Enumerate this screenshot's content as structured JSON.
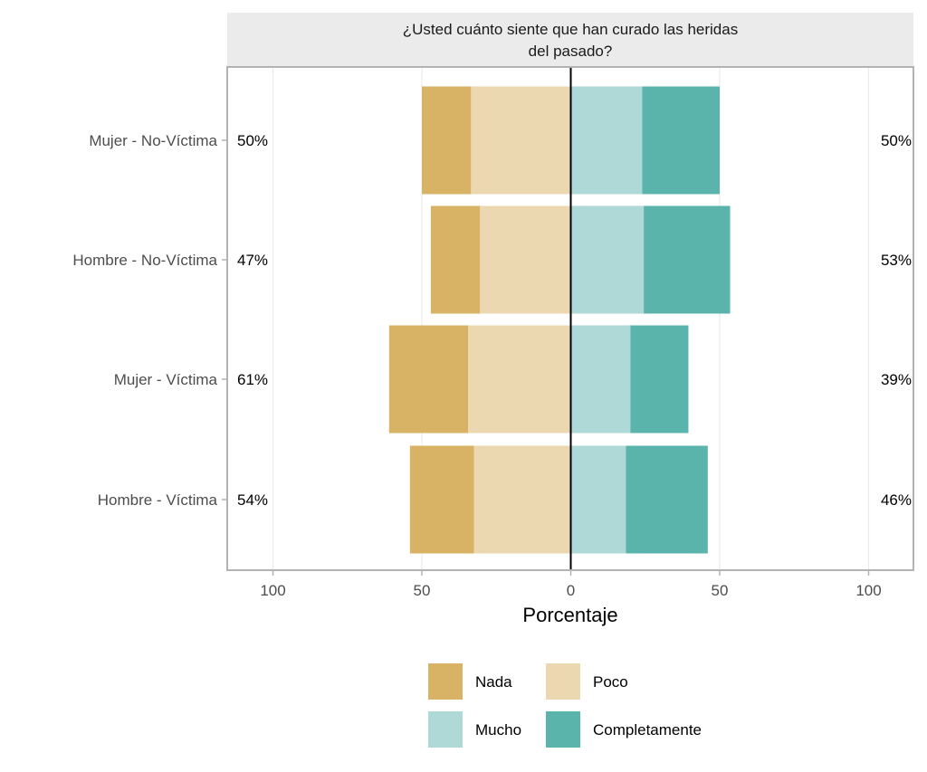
{
  "chart_data": {
    "type": "bar",
    "subtype": "diverging-stacked-likert",
    "facet_title": [
      "¿Usted cuánto siente que han curado las heridas",
      "del pasado?"
    ],
    "xlabel": "Porcentaje",
    "ylabel": "",
    "xlim": [
      -115,
      115
    ],
    "x_ticks": [
      {
        "value": -100,
        "label": "100"
      },
      {
        "value": -50,
        "label": "50"
      },
      {
        "value": 0,
        "label": "0"
      },
      {
        "value": 50,
        "label": "50"
      },
      {
        "value": 100,
        "label": "100"
      }
    ],
    "grid": true,
    "legend_position": "bottom",
    "categories": [
      "Mujer - No-Víctima",
      "Hombre - No-Víctima",
      "Mujer - Víctima",
      "Hombre - Víctima"
    ],
    "series": [
      {
        "name": "Nada",
        "side": "left",
        "color": "#d8b365",
        "values": [
          16.5,
          16.5,
          26.5,
          21.5
        ]
      },
      {
        "name": "Poco",
        "side": "left",
        "color": "#ebd8b0",
        "values": [
          33.5,
          30.5,
          34.5,
          32.5
        ]
      },
      {
        "name": "Mucho",
        "side": "right",
        "color": "#aed9d6",
        "values": [
          24,
          24.5,
          20,
          18.5
        ]
      },
      {
        "name": "Completamente",
        "side": "right",
        "color": "#5ab4ac",
        "values": [
          26,
          29,
          19.5,
          27.5
        ]
      }
    ],
    "left_totals": [
      "50%",
      "47%",
      "61%",
      "54%"
    ],
    "right_totals": [
      "50%",
      "53%",
      "39%",
      "46%"
    ],
    "legend": {
      "rows": [
        [
          "Nada",
          "Poco"
        ],
        [
          "Mucho",
          "Completamente"
        ]
      ]
    },
    "colors": {
      "strip_background": "#ebebeb",
      "panel_border": "#b3b3b3",
      "grid_line": "#ebebeb",
      "zero_line": "#000000"
    }
  }
}
